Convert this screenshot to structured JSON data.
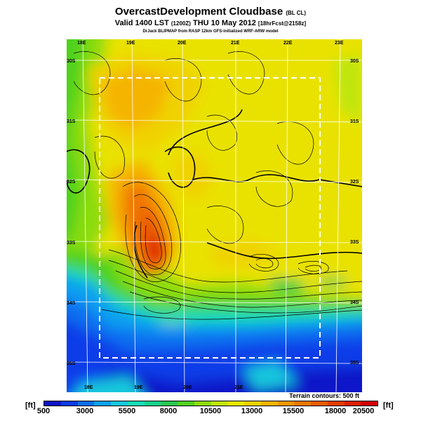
{
  "header": {
    "title": "OvercastDevelopment Cloudbase",
    "title_tag": "(BL CL)",
    "valid_prefix": "Valid 1400 LST",
    "valid_utc": "(1200Z)",
    "valid_date": "THU 10 May 2012",
    "forecast_tag": "[18hrFcst@2158z]",
    "credit": "DrJack BLIPMAP from RASP 12km GFS-initialized WRF-ARW model"
  },
  "map": {
    "longitude_labels_top": [
      "18E",
      "19E",
      "20E",
      "21E",
      "22E",
      "23E"
    ],
    "longitude_labels_bottom": [
      "18E",
      "19E",
      "20E",
      "21E"
    ],
    "latitude_labels_left": [
      "30S",
      "31S",
      "32S",
      "33S",
      "34S",
      "35S"
    ],
    "latitude_labels_right": [
      "30S",
      "31S",
      "32S",
      "33S",
      "34S",
      "35S"
    ],
    "terrain_note": "Terrain contours: 500 ft"
  },
  "colorbar": {
    "unit_left": "[ft]",
    "unit_right": "[ft]",
    "tick_labels": [
      "500",
      "3000",
      "5500",
      "8000",
      "10500",
      "13000",
      "15500",
      "18000",
      "20500"
    ],
    "colors": [
      "#0a14c8",
      "#0a3ce8",
      "#0a6ef0",
      "#0aa0f0",
      "#14c8dc",
      "#14dcb4",
      "#14d28c",
      "#28c850",
      "#50d21e",
      "#8cdc0a",
      "#bee60a",
      "#e6e600",
      "#f0d200",
      "#f5b400",
      "#f59600",
      "#f07800",
      "#eb5a00",
      "#e63c00",
      "#dc1e00",
      "#d20000"
    ]
  }
}
